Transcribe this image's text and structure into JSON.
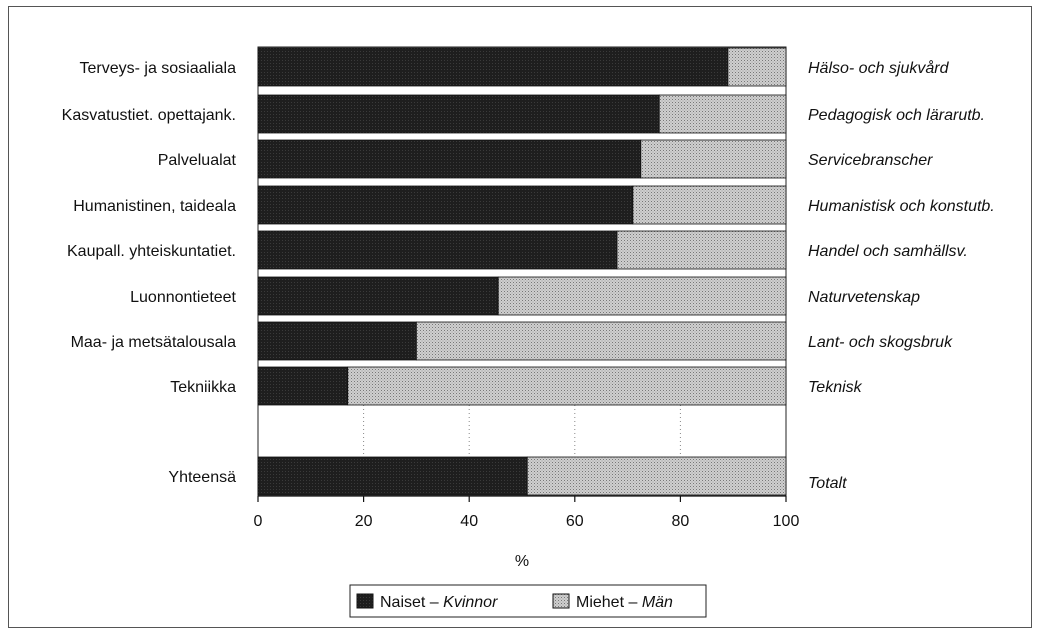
{
  "chart_data": {
    "type": "bar",
    "stacked": true,
    "orientation": "horizontal",
    "categories": [
      "Terveys- ja sosiaaliala",
      "Kasvatustiet. opettajank.",
      "Palvelualat",
      "Humanistinen, taideala",
      "Kaupall. yhteiskuntatiet.",
      "Luonnontieteet",
      "Maa- ja metsätalousala",
      "Tekniikka",
      "Yhteensä"
    ],
    "categories_secondary": [
      "Hälso- och sjukvård",
      "Pedagogisk och lärarutb.",
      "Servicebranscher",
      "Humanistisk och konstutb.",
      "Handel och samhällsv.",
      "Naturvetenskap",
      "Lant- och skogsbruk",
      "Teknisk",
      "Totalt"
    ],
    "series": [
      {
        "name": "Naiset – Kvinnor",
        "name_plain": "Naiset – ",
        "name_italic": "Kvinnor",
        "color": "#1c1c1c",
        "values": [
          89,
          76,
          72.5,
          71,
          68,
          45.5,
          30,
          17,
          51
        ]
      },
      {
        "name": "Miehet – Män",
        "name_plain": "Miehet – ",
        "name_italic": "Män",
        "color": "#b8b8b8",
        "values": [
          11,
          24,
          27.5,
          29,
          32,
          54.5,
          70,
          83,
          49
        ]
      }
    ],
    "xlabel": "%",
    "xlim": [
      0,
      100
    ],
    "xticks": [
      0,
      20,
      40,
      60,
      80,
      100
    ],
    "legend_position": "bottom",
    "grid": "dotted vertical lines, visible in gap row"
  }
}
